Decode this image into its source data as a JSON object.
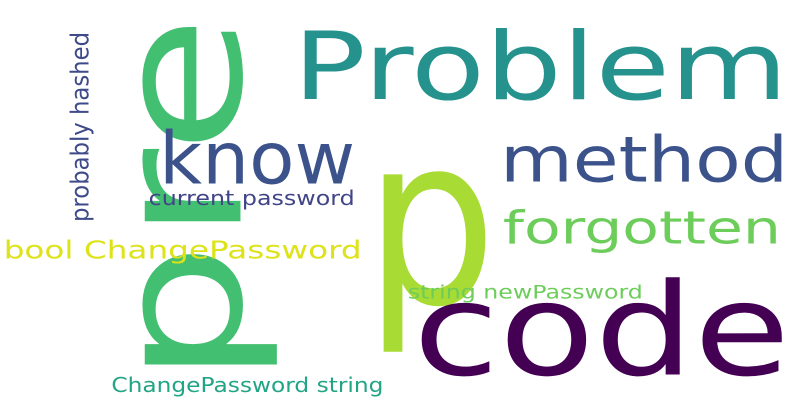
{
  "words": [
    {
      "text": "p",
      "color": "#a8db34"
    },
    {
      "text": "code",
      "color": "#440154"
    },
    {
      "text": "pre",
      "color": "#43bf71"
    },
    {
      "text": "Problem",
      "color": "#25928d"
    },
    {
      "text": "know",
      "color": "#3b528b"
    },
    {
      "text": "method",
      "color": "#3b528b"
    },
    {
      "text": "forgotten",
      "color": "#6ccd5a"
    },
    {
      "text": "bool ChangePassword",
      "color": "#dde318"
    },
    {
      "text": "current password",
      "color": "#414487"
    },
    {
      "text": "probably hashed",
      "color": "#3e4a89"
    },
    {
      "text": "string newPassword",
      "color": "#6ccd5a"
    },
    {
      "text": "ChangePassword string",
      "color": "#21a585"
    }
  ]
}
